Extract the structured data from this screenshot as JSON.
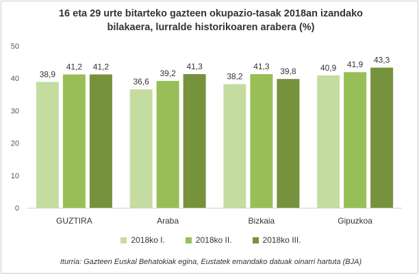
{
  "chart_data": {
    "type": "bar",
    "title_lines": [
      "16 eta 29 urte bitarteko gazteen okupazio-tasak 2018an izandako",
      "bilakaera, lurralde historikoaren arabera (%)"
    ],
    "categories": [
      "GUZTIRA",
      "Araba",
      "Bizkaia",
      "Gipuzkoa"
    ],
    "series": [
      {
        "name": "2018ko I.",
        "color": "#c5dca0",
        "values": [
          38.9,
          36.6,
          38.2,
          40.9
        ]
      },
      {
        "name": "2018ko II.",
        "color": "#98bf57",
        "values": [
          41.2,
          39.2,
          41.3,
          41.9
        ]
      },
      {
        "name": "2018ko III.",
        "color": "#76923c",
        "values": [
          41.2,
          41.3,
          39.8,
          43.3
        ]
      }
    ],
    "value_labels": [
      [
        "38,9",
        "36,6",
        "38,2",
        "40,9"
      ],
      [
        "41,2",
        "39,2",
        "41,3",
        "41,9"
      ],
      [
        "41,2",
        "41,3",
        "39,8",
        "43,3"
      ]
    ],
    "yticks": [
      "0",
      "10",
      "20",
      "30",
      "40",
      "50"
    ],
    "ylim": [
      0,
      50
    ],
    "grid": false,
    "legend_position": "bottom"
  },
  "source": "Iturria: Gazteen Euskal Behatokiak egina, Eustatek emandako datuak oinarri hartuta (BJA)"
}
